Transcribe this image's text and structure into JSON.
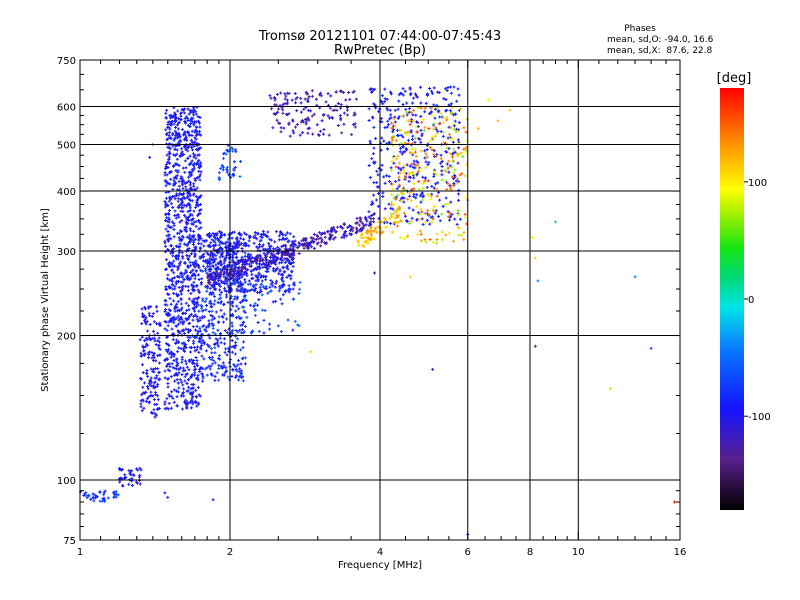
{
  "chart_data": {
    "type": "scatter",
    "title": "Tromsø 20121101 07:44:00-07:45:43",
    "subtitle": "RwPretec (Bp)",
    "xlabel": "Frequency [MHz]",
    "ylabel": "Stationary phase Virtual Height [km]",
    "x_scale": "log",
    "y_scale": "log",
    "xlim": [
      1,
      16
    ],
    "ylim": [
      75,
      750
    ],
    "x_ticks": [
      1,
      2,
      4,
      6,
      8,
      10,
      16
    ],
    "x_tick_labels": [
      "1",
      "2",
      "4",
      "6",
      "8",
      "10",
      "16"
    ],
    "y_ticks": [
      75,
      100,
      200,
      300,
      400,
      500,
      600,
      750
    ],
    "y_tick_labels": [
      "75",
      "100",
      "200",
      "300",
      "400",
      "500",
      "600",
      "750"
    ],
    "x_gridlines": [
      2,
      4,
      6,
      8,
      10
    ],
    "y_gridlines": [
      100,
      200,
      300,
      400,
      500,
      600
    ],
    "grid": true,
    "colorbar": {
      "label": "[deg]",
      "range": [
        -180,
        180
      ],
      "tick_values": [
        100,
        0,
        -100
      ],
      "tick_labels": [
        "100",
        "0",
        "-100"
      ]
    },
    "stats": {
      "title": "Phases",
      "line_o": "mean, sd,O: -94.0, 16.6",
      "line_x": "mean, sd,X:  87.6, 22.8"
    },
    "clusters": [
      {
        "x": [
          1.48,
          1.75
        ],
        "y": [
          140,
          600
        ],
        "phase": [
          -110,
          -80
        ],
        "n": 1100
      },
      {
        "x": [
          1.32,
          1.45
        ],
        "y": [
          135,
          230
        ],
        "phase": [
          -110,
          -90
        ],
        "n": 160
      },
      {
        "x": [
          1.75,
          2.15
        ],
        "y": [
          160,
          320
        ],
        "phase": [
          -110,
          -60
        ],
        "n": 420
      },
      {
        "x": [
          1.8,
          2.7
        ],
        "y": [
          245,
          330
        ],
        "phase": [
          -110,
          -80
        ],
        "n": 520
      },
      {
        "x": [
          2.1,
          2.8
        ],
        "y": [
          200,
          260
        ],
        "phase": [
          -100,
          -40
        ],
        "n": 60
      },
      {
        "x": [
          1.9,
          2.1
        ],
        "y": [
          420,
          500
        ],
        "phase": [
          -90,
          -40
        ],
        "n": 40
      },
      {
        "x": [
          2.4,
          3.6
        ],
        "y": [
          520,
          650
        ],
        "phase": [
          -140,
          -100
        ],
        "n": 150
      },
      {
        "x": [
          3.8,
          5.8
        ],
        "y": [
          340,
          660
        ],
        "phase": [
          -110,
          -80
        ],
        "n": 380
      },
      {
        "x": [
          4.2,
          6.0
        ],
        "y": [
          310,
          600
        ],
        "phase": [
          60,
          160
        ],
        "n": 260
      },
      {
        "x": [
          1.0,
          1.2
        ],
        "y": [
          90,
          95
        ],
        "phase": [
          -100,
          -60
        ],
        "n": 40
      },
      {
        "x": [
          1.2,
          1.33
        ],
        "y": [
          97,
          106
        ],
        "phase": [
          -110,
          -90
        ],
        "n": 40
      }
    ],
    "arc_o": {
      "x": [
        1.8,
        3.9
      ],
      "y": [
        260,
        350
      ],
      "phase": [
        -145,
        -95
      ],
      "n": 350
    },
    "arc_x": {
      "x": [
        3.6,
        4.4
      ],
      "y": [
        310,
        360
      ],
      "phase": [
        100,
        140
      ],
      "n": 70
    },
    "sparse_points": [
      {
        "x": 1.4,
        "y": 500,
        "phase": -40
      },
      {
        "x": 1.38,
        "y": 470,
        "phase": -90
      },
      {
        "x": 8.2,
        "y": 190,
        "phase": -140
      },
      {
        "x": 8.1,
        "y": 320,
        "phase": 90
      },
      {
        "x": 8.3,
        "y": 260,
        "phase": -40
      },
      {
        "x": 8.2,
        "y": 290,
        "phase": 110
      },
      {
        "x": 9.0,
        "y": 345,
        "phase": 30
      },
      {
        "x": 13.0,
        "y": 265,
        "phase": -40
      },
      {
        "x": 14.0,
        "y": 188,
        "phase": -70
      },
      {
        "x": 11.6,
        "y": 155,
        "phase": 110
      },
      {
        "x": 5.1,
        "y": 170,
        "phase": -120
      },
      {
        "x": 6.0,
        "y": 77,
        "phase": -90
      },
      {
        "x": 15.6,
        "y": 90,
        "phase": 170
      },
      {
        "x": 2.9,
        "y": 185,
        "phase": 110
      },
      {
        "x": 1.85,
        "y": 91,
        "phase": -100
      },
      {
        "x": 1.5,
        "y": 92,
        "phase": -90
      },
      {
        "x": 1.48,
        "y": 94,
        "phase": -90
      },
      {
        "x": 6.6,
        "y": 620,
        "phase": 100
      },
      {
        "x": 6.9,
        "y": 560,
        "phase": 120
      },
      {
        "x": 7.3,
        "y": 590,
        "phase": 110
      },
      {
        "x": 3.9,
        "y": 270,
        "phase": -100
      },
      {
        "x": 4.6,
        "y": 265,
        "phase": 110
      },
      {
        "x": 6.3,
        "y": 540,
        "phase": 120
      },
      {
        "x": 5.0,
        "y": 420,
        "phase": 170
      }
    ]
  }
}
